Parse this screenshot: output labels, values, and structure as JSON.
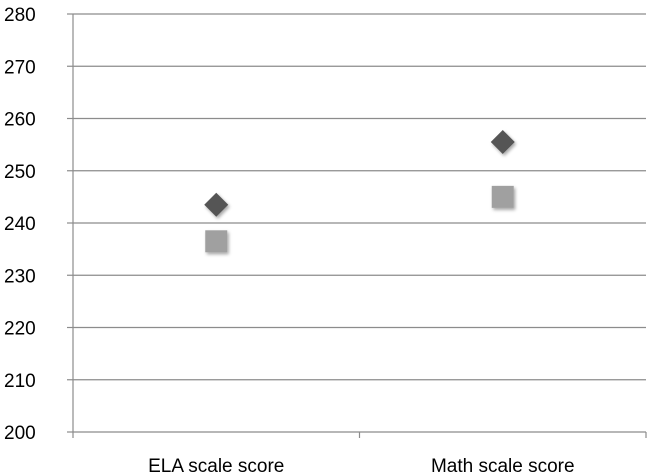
{
  "chart_data": {
    "type": "scatter",
    "title": "",
    "xlabel": "",
    "ylabel": "",
    "categories": [
      "ELA scale score",
      "Math scale score"
    ],
    "ylim": [
      200,
      280
    ],
    "yticks": [
      200,
      210,
      220,
      230,
      240,
      250,
      260,
      270,
      280
    ],
    "grid": true,
    "legend": "none",
    "series": [
      {
        "values": [
          243.5,
          255.5
        ],
        "marker": "diamond",
        "color": "#555555"
      },
      {
        "values": [
          236.5,
          245
        ],
        "marker": "square",
        "color": "#a0a0a0"
      }
    ]
  }
}
